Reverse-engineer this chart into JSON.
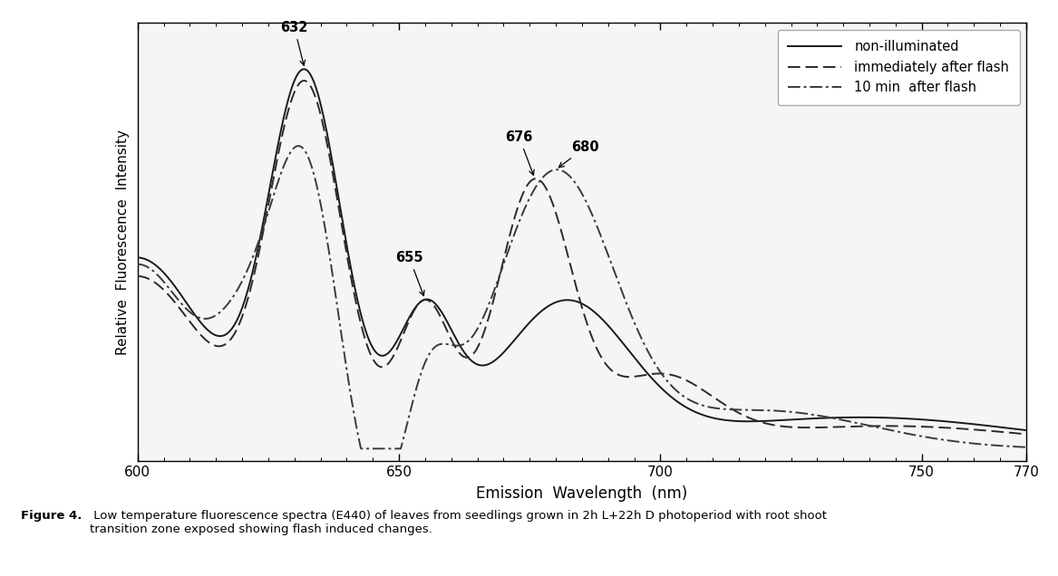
{
  "xlabel": "Emission  Wavelength  (nm)",
  "ylabel": "Relative  Fluorescence  Intensity",
  "xlim": [
    600,
    770
  ],
  "xticks": [
    600,
    650,
    700,
    750,
    770
  ],
  "background_color": "#ffffff",
  "plot_bg_color": "#f5f5f5",
  "legend_entries": [
    "non-illuminated",
    "immediately after flash",
    "10 min  after flash"
  ],
  "figure_caption_bold": "Figure 4.",
  "figure_caption_normal": " Low temperature fluorescence spectra (E440) of leaves from seedlings grown in 2h L+22h D photoperiod with root shoot\ntransition zone exposed showing flash induced changes."
}
